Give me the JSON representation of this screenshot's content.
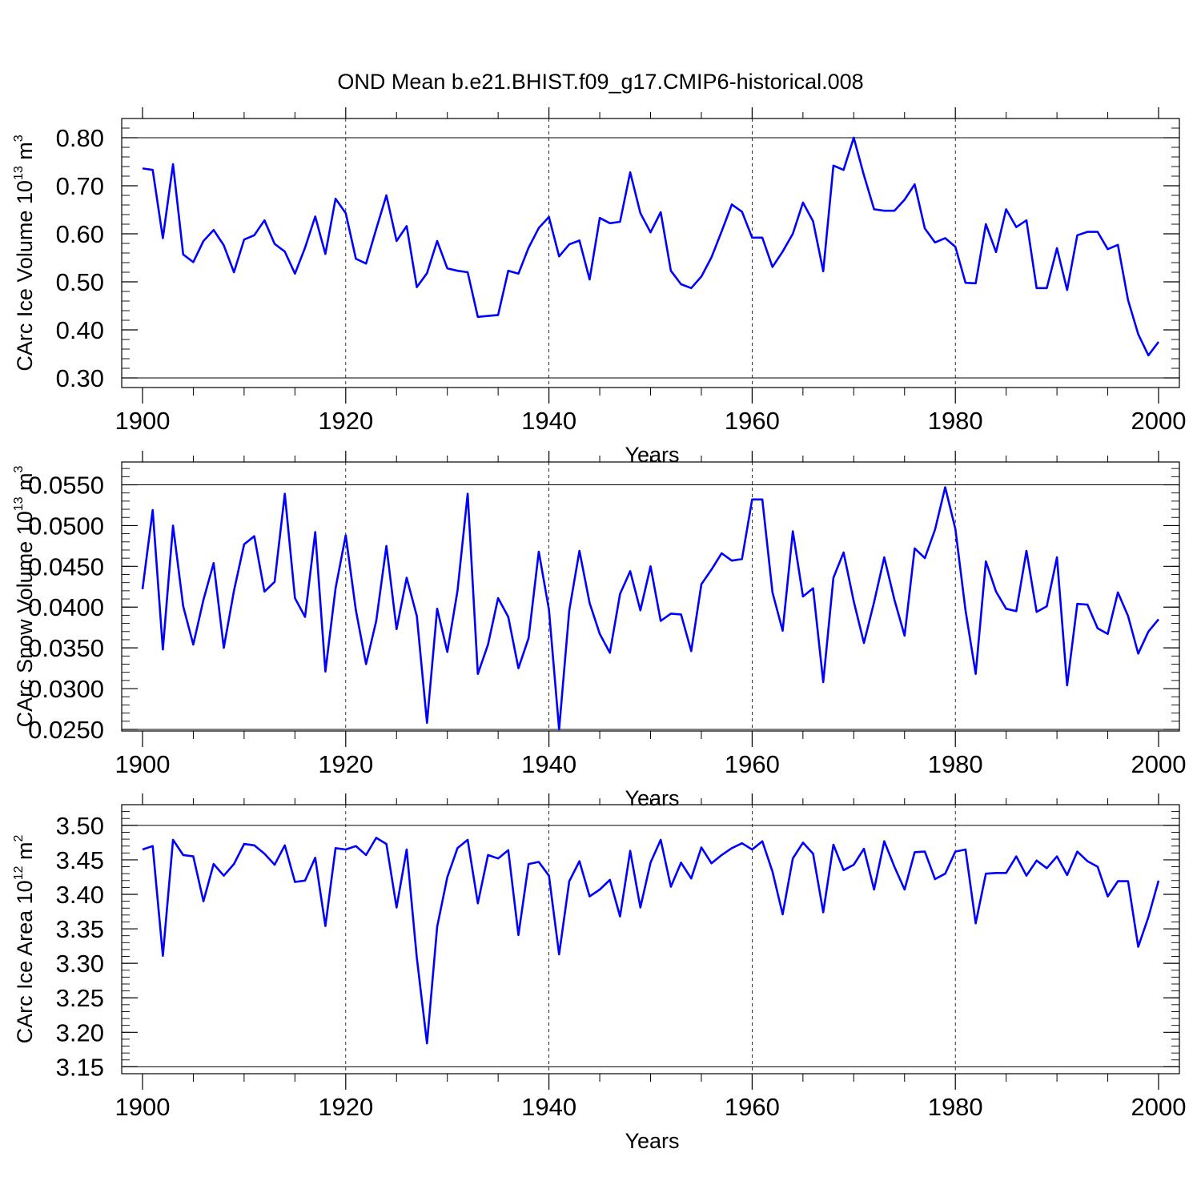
{
  "title": "OND Mean b.e21.BHIST.f09_g17.CMIP6-historical.008",
  "colors": {
    "line": "#0000ff",
    "axis": "#000000",
    "grid": "#000000"
  },
  "chart_data": [
    {
      "type": "line",
      "ylabel": {
        "prefix": "CArc Ice Volume 10",
        "exponent1": "13",
        "unit": " m",
        "exponent2": "3"
      },
      "xlabel": "Years",
      "xlim": [
        1900,
        2000
      ],
      "ylim": [
        0.28,
        0.84
      ],
      "x_ticks": [
        "1900",
        "1920",
        "1940",
        "1960",
        "1980",
        "2000"
      ],
      "y_ticks": [
        "0.30",
        "0.40",
        "0.50",
        "0.60",
        "0.70",
        "0.80"
      ],
      "x_start": 1900,
      "values": [
        0.736,
        0.733,
        0.591,
        0.745,
        0.557,
        0.541,
        0.585,
        0.608,
        0.576,
        0.52,
        0.588,
        0.597,
        0.628,
        0.579,
        0.563,
        0.517,
        0.571,
        0.636,
        0.558,
        0.673,
        0.643,
        0.548,
        0.538,
        0.61,
        0.68,
        0.585,
        0.616,
        0.489,
        0.518,
        0.585,
        0.528,
        0.523,
        0.52,
        0.427,
        0.429,
        0.431,
        0.523,
        0.517,
        0.571,
        0.612,
        0.635,
        0.553,
        0.578,
        0.586,
        0.505,
        0.633,
        0.622,
        0.625,
        0.728,
        0.643,
        0.603,
        0.645,
        0.523,
        0.495,
        0.487,
        0.511,
        0.551,
        0.605,
        0.661,
        0.646,
        0.592,
        0.592,
        0.531,
        0.563,
        0.6,
        0.665,
        0.626,
        0.522,
        0.742,
        0.733,
        0.8,
        0.722,
        0.651,
        0.648,
        0.648,
        0.671,
        0.703,
        0.611,
        0.582,
        0.591,
        0.573,
        0.498,
        0.497,
        0.62,
        0.562,
        0.651,
        0.614,
        0.628,
        0.487,
        0.487,
        0.57,
        0.483,
        0.597,
        0.604,
        0.604,
        0.568,
        0.577,
        0.462,
        0.391,
        0.347,
        0.375
      ]
    },
    {
      "type": "line",
      "ylabel": {
        "prefix": "CArc Snow Volume 10",
        "exponent1": "13",
        "unit": " m",
        "exponent2": "3"
      },
      "xlabel": "Years",
      "xlim": [
        1900,
        2000
      ],
      "ylim": [
        0.0248,
        0.0578
      ],
      "x_ticks": [
        "1900",
        "1920",
        "1940",
        "1960",
        "1980",
        "2000"
      ],
      "y_ticks": [
        "0.0250",
        "0.0300",
        "0.0350",
        "0.0400",
        "0.0450",
        "0.0500",
        "0.0550"
      ],
      "x_start": 1900,
      "values": [
        0.0422,
        0.0519,
        0.0348,
        0.05,
        0.0401,
        0.0354,
        0.0409,
        0.0454,
        0.035,
        0.042,
        0.0477,
        0.0487,
        0.0419,
        0.0431,
        0.0539,
        0.0411,
        0.0388,
        0.0492,
        0.0321,
        0.0423,
        0.0488,
        0.0396,
        0.033,
        0.0383,
        0.0475,
        0.0373,
        0.0436,
        0.0389,
        0.0258,
        0.0398,
        0.0345,
        0.042,
        0.0539,
        0.0318,
        0.0354,
        0.0411,
        0.0388,
        0.0325,
        0.0362,
        0.0468,
        0.0397,
        0.025,
        0.0396,
        0.0469,
        0.0405,
        0.0367,
        0.0344,
        0.0416,
        0.0444,
        0.0396,
        0.045,
        0.0383,
        0.0392,
        0.0391,
        0.0346,
        0.0428,
        0.0446,
        0.0466,
        0.0457,
        0.0459,
        0.0532,
        0.0532,
        0.0418,
        0.0371,
        0.0493,
        0.0413,
        0.0423,
        0.0308,
        0.0436,
        0.0467,
        0.0407,
        0.0356,
        0.0406,
        0.0461,
        0.0409,
        0.0365,
        0.0472,
        0.046,
        0.0495,
        0.0547,
        0.0496,
        0.0396,
        0.0318,
        0.0456,
        0.0419,
        0.0398,
        0.0395,
        0.0469,
        0.0394,
        0.0401,
        0.0461,
        0.0304,
        0.0404,
        0.0403,
        0.0374,
        0.0367,
        0.0418,
        0.0389,
        0.0343,
        0.037,
        0.0385
      ]
    },
    {
      "type": "line",
      "ylabel": {
        "prefix": "CArc Ice Area 10",
        "exponent1": "12",
        "unit": " m",
        "exponent2": "2"
      },
      "xlabel": "Years",
      "xlim": [
        1900,
        2000
      ],
      "ylim": [
        3.14,
        3.53
      ],
      "x_ticks": [
        "1900",
        "1920",
        "1940",
        "1960",
        "1980",
        "2000"
      ],
      "y_ticks": [
        "3.15",
        "3.20",
        "3.25",
        "3.30",
        "3.35",
        "3.40",
        "3.45",
        "3.50"
      ],
      "x_start": 1900,
      "values": [
        3.465,
        3.47,
        3.311,
        3.479,
        3.457,
        3.455,
        3.39,
        3.444,
        3.427,
        3.444,
        3.473,
        3.471,
        3.459,
        3.443,
        3.471,
        3.418,
        3.42,
        3.453,
        3.354,
        3.467,
        3.465,
        3.47,
        3.457,
        3.482,
        3.473,
        3.381,
        3.465,
        3.308,
        3.184,
        3.353,
        3.425,
        3.467,
        3.479,
        3.387,
        3.457,
        3.452,
        3.464,
        3.341,
        3.444,
        3.447,
        3.427,
        3.313,
        3.419,
        3.448,
        3.397,
        3.407,
        3.421,
        3.368,
        3.463,
        3.381,
        3.446,
        3.479,
        3.411,
        3.446,
        3.423,
        3.468,
        3.445,
        3.457,
        3.467,
        3.474,
        3.465,
        3.477,
        3.433,
        3.371,
        3.452,
        3.475,
        3.459,
        3.374,
        3.472,
        3.435,
        3.443,
        3.466,
        3.407,
        3.477,
        3.44,
        3.407,
        3.461,
        3.462,
        3.422,
        3.43,
        3.462,
        3.465,
        3.358,
        3.43,
        3.431,
        3.431,
        3.455,
        3.427,
        3.449,
        3.438,
        3.455,
        3.428,
        3.462,
        3.448,
        3.44,
        3.397,
        3.419,
        3.419,
        3.324,
        3.367,
        3.42
      ]
    }
  ]
}
